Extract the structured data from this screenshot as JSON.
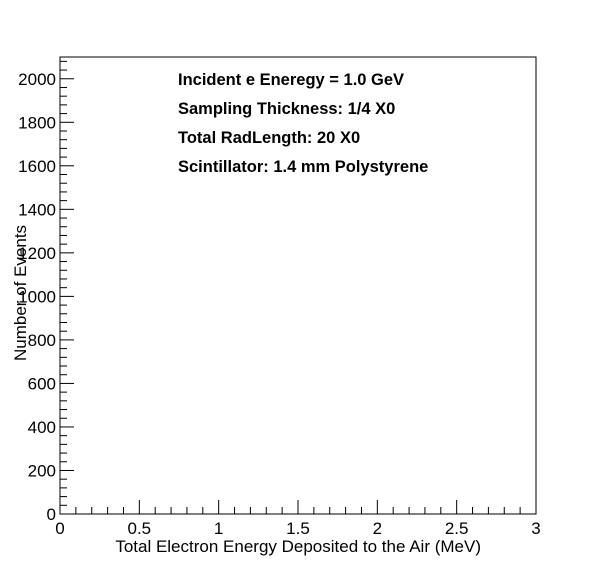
{
  "chart_data": {
    "type": "bar",
    "title": "",
    "xlabel": "Total Electron Energy Deposited to the Air (MeV)",
    "ylabel": "Number of Events",
    "xlim": [
      0,
      3
    ],
    "ylim": [
      0,
      2100
    ],
    "x_ticks": [
      "0",
      "0.5",
      "1",
      "1.5",
      "2",
      "2.5",
      "3"
    ],
    "y_ticks": [
      "0",
      "200",
      "400",
      "600",
      "800",
      "1000",
      "1200",
      "1400",
      "1600",
      "1800",
      "2000"
    ],
    "grid": false,
    "series": [],
    "annotations": [
      "Incident e Eneregy = 1.0 GeV",
      "Sampling Thickness: 1/4 X0",
      "Total RadLength: 20 X0",
      "Scintillator: 1.4 mm Polystyrene"
    ]
  }
}
